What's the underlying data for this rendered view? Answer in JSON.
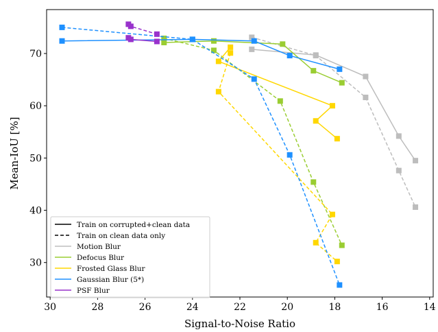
{
  "chart_data": {
    "type": "line",
    "xlabel": "Signal-to-Noise Ratio",
    "ylabel": "Mean-IoU [%]",
    "xlim": [
      30.15,
      13.85
    ],
    "ylim": [
      23.4,
      78.4
    ],
    "x_inverted": true,
    "x_ticks": [
      30,
      28,
      26,
      24,
      22,
      20,
      18,
      16,
      14
    ],
    "y_ticks": [
      30,
      40,
      50,
      60,
      70
    ],
    "grid": false,
    "legend_position": "bottom-left",
    "legend": {
      "style_entries": [
        {
          "label": "Train on corrupted+clean data",
          "dash": "solid"
        },
        {
          "label": "Train on clean data only",
          "dash": "dashed"
        }
      ],
      "series_entries": [
        "Motion Blur",
        "Defocus Blur",
        "Frosted Glass Blur",
        "Gaussian Blur (5*)",
        "PSF Blur"
      ]
    },
    "series": [
      {
        "name": "Motion Blur",
        "color": "#bdbdbd",
        "dash": "solid",
        "x": [
          21.5,
          18.8,
          16.7,
          15.3,
          14.6
        ],
        "y": [
          70.8,
          69.7,
          65.6,
          54.2,
          49.5
        ]
      },
      {
        "name": "Motion Blur",
        "color": "#bdbdbd",
        "dash": "dashed",
        "x": [
          21.5,
          18.8,
          16.7,
          15.3,
          14.6
        ],
        "y": [
          73.1,
          69.6,
          61.6,
          47.6,
          40.6
        ]
      },
      {
        "name": "Defocus Blur",
        "color": "#9acd32",
        "dash": "solid",
        "x": [
          25.2,
          23.1,
          20.2,
          18.9,
          17.7
        ],
        "y": [
          72.1,
          72.4,
          71.8,
          66.7,
          64.4
        ]
      },
      {
        "name": "Defocus Blur",
        "color": "#9acd32",
        "dash": "dashed",
        "x": [
          25.2,
          23.1,
          20.3,
          18.9,
          17.7
        ],
        "y": [
          72.9,
          70.6,
          60.9,
          45.4,
          33.3
        ]
      },
      {
        "name": "Frosted Glass Blur",
        "color": "#ffd700",
        "dash": "solid",
        "x": [
          22.4,
          22.9,
          18.1,
          18.8,
          17.9
        ],
        "y": [
          71.2,
          68.5,
          60.0,
          57.1,
          53.7
        ]
      },
      {
        "name": "Frosted Glass Blur",
        "color": "#ffd700",
        "dash": "dashed",
        "x": [
          22.4,
          22.9,
          18.1,
          18.8,
          17.9
        ],
        "y": [
          70.1,
          62.7,
          39.2,
          33.8,
          30.2
        ]
      },
      {
        "name": "Gaussian Blur (5*)",
        "color": "#1e90ff",
        "dash": "solid",
        "x": [
          29.5,
          24.0,
          21.4,
          19.9,
          17.8
        ],
        "y": [
          72.4,
          72.7,
          72.4,
          69.6,
          67.0
        ]
      },
      {
        "name": "Gaussian Blur (5*)",
        "color": "#1e90ff",
        "dash": "dashed",
        "x": [
          29.5,
          24.0,
          21.4,
          19.9,
          17.8
        ],
        "y": [
          75.0,
          72.7,
          65.1,
          50.6,
          25.7
        ]
      },
      {
        "name": "PSF Blur",
        "color": "#9932cc",
        "dash": "solid",
        "x": [
          26.7,
          26.6,
          25.5
        ],
        "y": [
          73.0,
          72.7,
          72.3
        ]
      },
      {
        "name": "PSF Blur",
        "color": "#9932cc",
        "dash": "dashed",
        "x": [
          26.7,
          26.6,
          25.5
        ],
        "y": [
          75.6,
          75.2,
          73.7
        ]
      }
    ]
  }
}
